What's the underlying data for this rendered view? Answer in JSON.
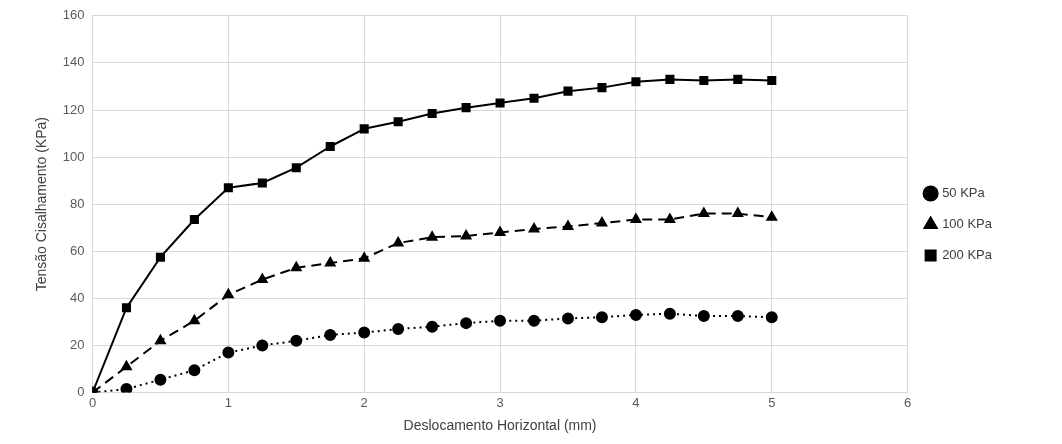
{
  "chart_data": {
    "type": "line",
    "xlabel": "Deslocamento Horizontal (mm)",
    "ylabel": "Tensão Cisalhamento (KPa)",
    "x": [
      0,
      0.25,
      0.5,
      0.75,
      1,
      1.25,
      1.5,
      1.75,
      2,
      2.25,
      2.5,
      2.75,
      3,
      3.25,
      3.5,
      3.75,
      4,
      4.25,
      4.5,
      4.75,
      5
    ],
    "series": [
      {
        "name": "50 KPa",
        "color": "#000000",
        "marker": "circle",
        "line_style": "dotted",
        "values": [
          0,
          1.5,
          5.5,
          9.5,
          17,
          20,
          22,
          24.5,
          25.5,
          27,
          28,
          29.5,
          30.5,
          30.5,
          31.5,
          32,
          33,
          33.5,
          32.5,
          32.5,
          32
        ]
      },
      {
        "name": "100 KPa",
        "color": "#000000",
        "marker": "triangle",
        "line_style": "dashed",
        "values": [
          0,
          11,
          22,
          30.5,
          41.5,
          48,
          53,
          55,
          57,
          63.5,
          66,
          66.5,
          68,
          69.5,
          70.5,
          72,
          73.5,
          73.5,
          76,
          76,
          74.5
        ]
      },
      {
        "name": "200 KPa",
        "color": "#000000",
        "marker": "square",
        "line_style": "solid",
        "values": [
          0,
          36,
          57.5,
          73.5,
          87,
          89,
          95.5,
          104.5,
          112,
          115,
          118.5,
          121,
          123,
          125,
          128,
          129.5,
          132,
          133,
          132.5,
          133,
          132.5
        ]
      }
    ],
    "xlim": [
      0,
      6
    ],
    "xticks": [
      0,
      1,
      2,
      3,
      4,
      5,
      6
    ],
    "ylim": [
      0,
      160
    ],
    "yticks": [
      0,
      20,
      40,
      60,
      80,
      100,
      120,
      140,
      160
    ],
    "grid": true,
    "legend": "right"
  }
}
